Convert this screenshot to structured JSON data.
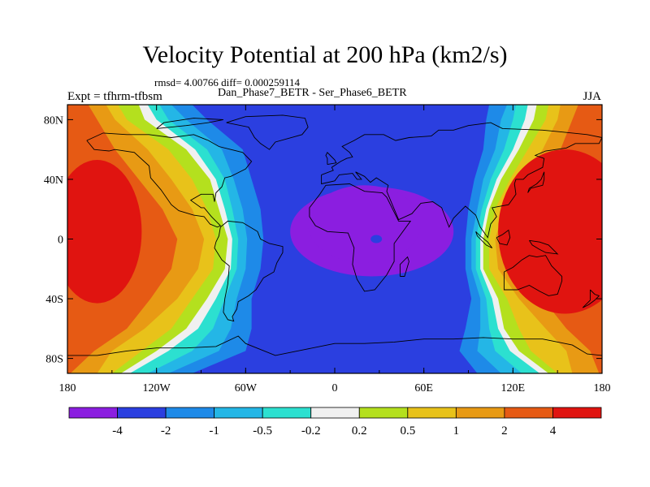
{
  "chart_data": {
    "type": "heatmap",
    "title": "Velocity Potential at 200 hPa (km2/s)",
    "stats": "rmsd= 4.00766 diff= 0.000259114",
    "left_label": "Expt = tfhrm-tfbsm",
    "center_label": "Dan_Phase7_BETR - Ser_Phase6_BETR",
    "right_label": "JJA",
    "xticks": [
      "180",
      "120W",
      "60W",
      "0",
      "60E",
      "120E",
      "180"
    ],
    "yticks": [
      "80N",
      "40N",
      "0",
      "40S",
      "80S"
    ],
    "x_range_deg": [
      -180,
      180
    ],
    "y_range_deg": [
      -90,
      90
    ],
    "colorbar": {
      "labels": [
        "-4",
        "-2",
        "-1",
        "-0.5",
        "-0.2",
        "0.2",
        "0.5",
        "1",
        "2",
        "4"
      ],
      "colors": [
        "#8b1ee0",
        "#2b3fe0",
        "#1e8ae8",
        "#24b6e6",
        "#2ce0d0",
        "#f0f0f0",
        "#b4e01e",
        "#e8c21a",
        "#e89a14",
        "#e65a14",
        "#e01410"
      ]
    },
    "field": {
      "low_center": {
        "lon": 25,
        "lat": 0,
        "value": "< -4"
      },
      "high_centers": [
        {
          "lon": 150,
          "lat": 0,
          "value": "> 4"
        },
        {
          "lon": -155,
          "lat": 0,
          "value": "> 4"
        }
      ]
    }
  }
}
